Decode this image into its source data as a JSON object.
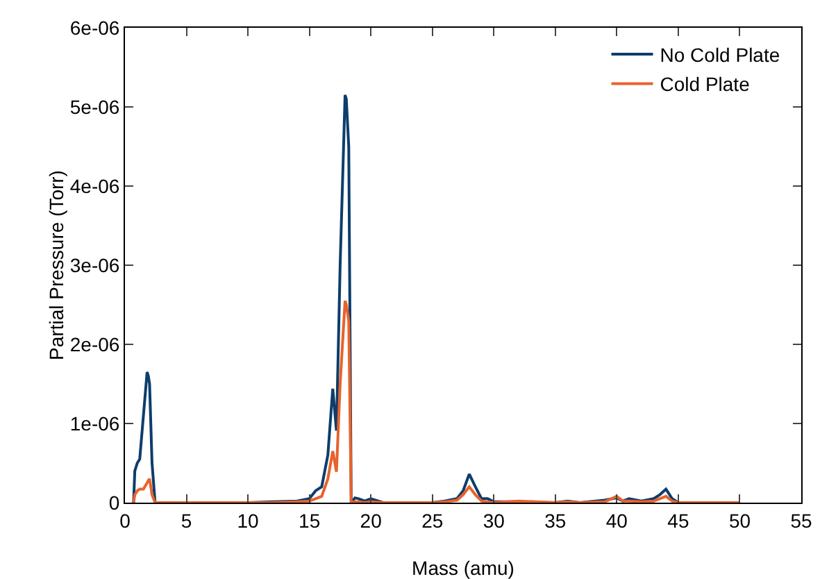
{
  "chart_data": {
    "type": "line",
    "xlabel": "Mass (amu)",
    "ylabel": "Partial Pressure (Torr)",
    "x": [
      0.7,
      0.8,
      1,
      1.2,
      1.5,
      1.8,
      1.9,
      2,
      2.2,
      2.45,
      3,
      10,
      12,
      14,
      15,
      15.5,
      16,
      16.5,
      16.9,
      17.2,
      17.5,
      17.9,
      18,
      18.2,
      18.4,
      18.7,
      19,
      19.5,
      20,
      21,
      25,
      26,
      27,
      27.5,
      28,
      28.5,
      29,
      29.5,
      30,
      32,
      35,
      36,
      37,
      39,
      40,
      40.5,
      41,
      42,
      43,
      43.5,
      44,
      44.5,
      45,
      50
    ],
    "series": [
      {
        "name": "No Cold Plate",
        "color": "#0d3d6b",
        "values": [
          0,
          4e-07,
          5e-07,
          5.5e-07,
          1.1e-06,
          1.65e-06,
          1.6e-06,
          1.5e-06,
          5e-07,
          0,
          0,
          0,
          1e-08,
          2e-08,
          5e-08,
          1.5e-07,
          2e-07,
          6e-07,
          1.44e-06,
          9.1e-07,
          3e-06,
          5.15e-06,
          5.1e-06,
          4.5e-06,
          0,
          6e-08,
          5e-08,
          2e-08,
          5e-08,
          0,
          0,
          2e-08,
          5e-08,
          1.5e-07,
          3.6e-07,
          2e-07,
          5e-08,
          5e-08,
          1e-08,
          1e-08,
          0,
          2e-08,
          0,
          3e-08,
          6e-08,
          2e-08,
          5e-08,
          2e-08,
          5e-08,
          1e-07,
          1.7e-07,
          5e-08,
          0,
          0
        ]
      },
      {
        "name": "Cold Plate",
        "color": "#e8622c",
        "values": [
          0,
          1e-07,
          1.5e-07,
          1.7e-07,
          1.7e-07,
          2.5e-07,
          2.8e-07,
          3e-07,
          1e-07,
          0,
          0,
          0,
          0,
          1e-08,
          2e-08,
          5e-08,
          8e-08,
          3e-07,
          6.5e-07,
          3.9e-07,
          1.5e-06,
          2.55e-06,
          2.5e-06,
          2.3e-06,
          0,
          1e-08,
          1e-08,
          0,
          1e-08,
          0,
          0,
          1e-08,
          3e-08,
          1e-07,
          2e-07,
          1e-07,
          2e-08,
          1e-08,
          0,
          2e-08,
          0,
          1e-08,
          0,
          1e-08,
          8e-08,
          2e-08,
          2e-08,
          1e-08,
          2e-08,
          5e-08,
          8e-08,
          2e-08,
          0,
          0
        ]
      }
    ],
    "xlim": [
      0,
      55
    ],
    "xticks": [
      0,
      5,
      10,
      15,
      20,
      25,
      30,
      35,
      40,
      45,
      50,
      55
    ],
    "ylim": [
      0,
      6e-06
    ],
    "yticks": [
      0,
      {
        "value": 1e-06,
        "label": "1e-06"
      },
      {
        "value": 2e-06,
        "label": "2e-06"
      },
      {
        "value": 3e-06,
        "label": "3e-06"
      },
      {
        "value": 4e-06,
        "label": "4e-06"
      },
      {
        "value": 5e-06,
        "label": "5e-06"
      },
      {
        "value": 6e-06,
        "label": "6e-06"
      }
    ],
    "legend": "top right",
    "marker": "none",
    "line_style": "solid",
    "grid": false
  }
}
